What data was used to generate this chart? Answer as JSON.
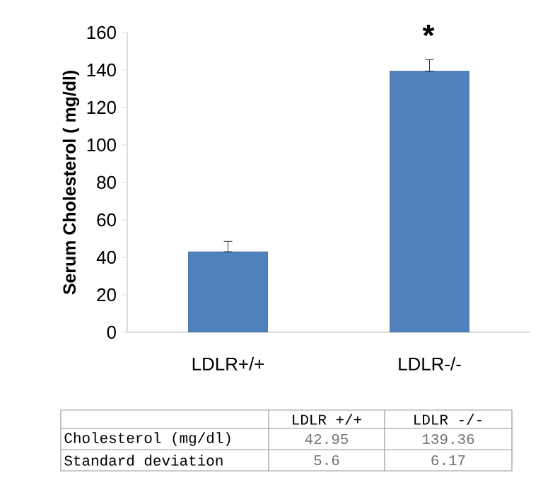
{
  "chart_data": {
    "type": "bar",
    "ylabel": "Serum Cholesterol ( mg/dl)",
    "categories": [
      "LDLR+/+",
      "LDLR-/-"
    ],
    "values": [
      42.95,
      139.36
    ],
    "data_labels": true,
    "errors": [
      [
        42.95,
        48.55
      ],
      [
        139.36,
        145.53
      ]
    ],
    "color": "#4f81bd",
    "ylim": [
      0,
      160
    ],
    "yticks": [
      0,
      20,
      40,
      60,
      80,
      100,
      120,
      140,
      160
    ],
    "grid": false,
    "annotations": [
      "*",
      "LDLR +/+",
      "LDLR -/-",
      "Cholesterol (mg/dl)",
      "Standard deviation",
      "5.6",
      "6.17"
    ]
  }
}
